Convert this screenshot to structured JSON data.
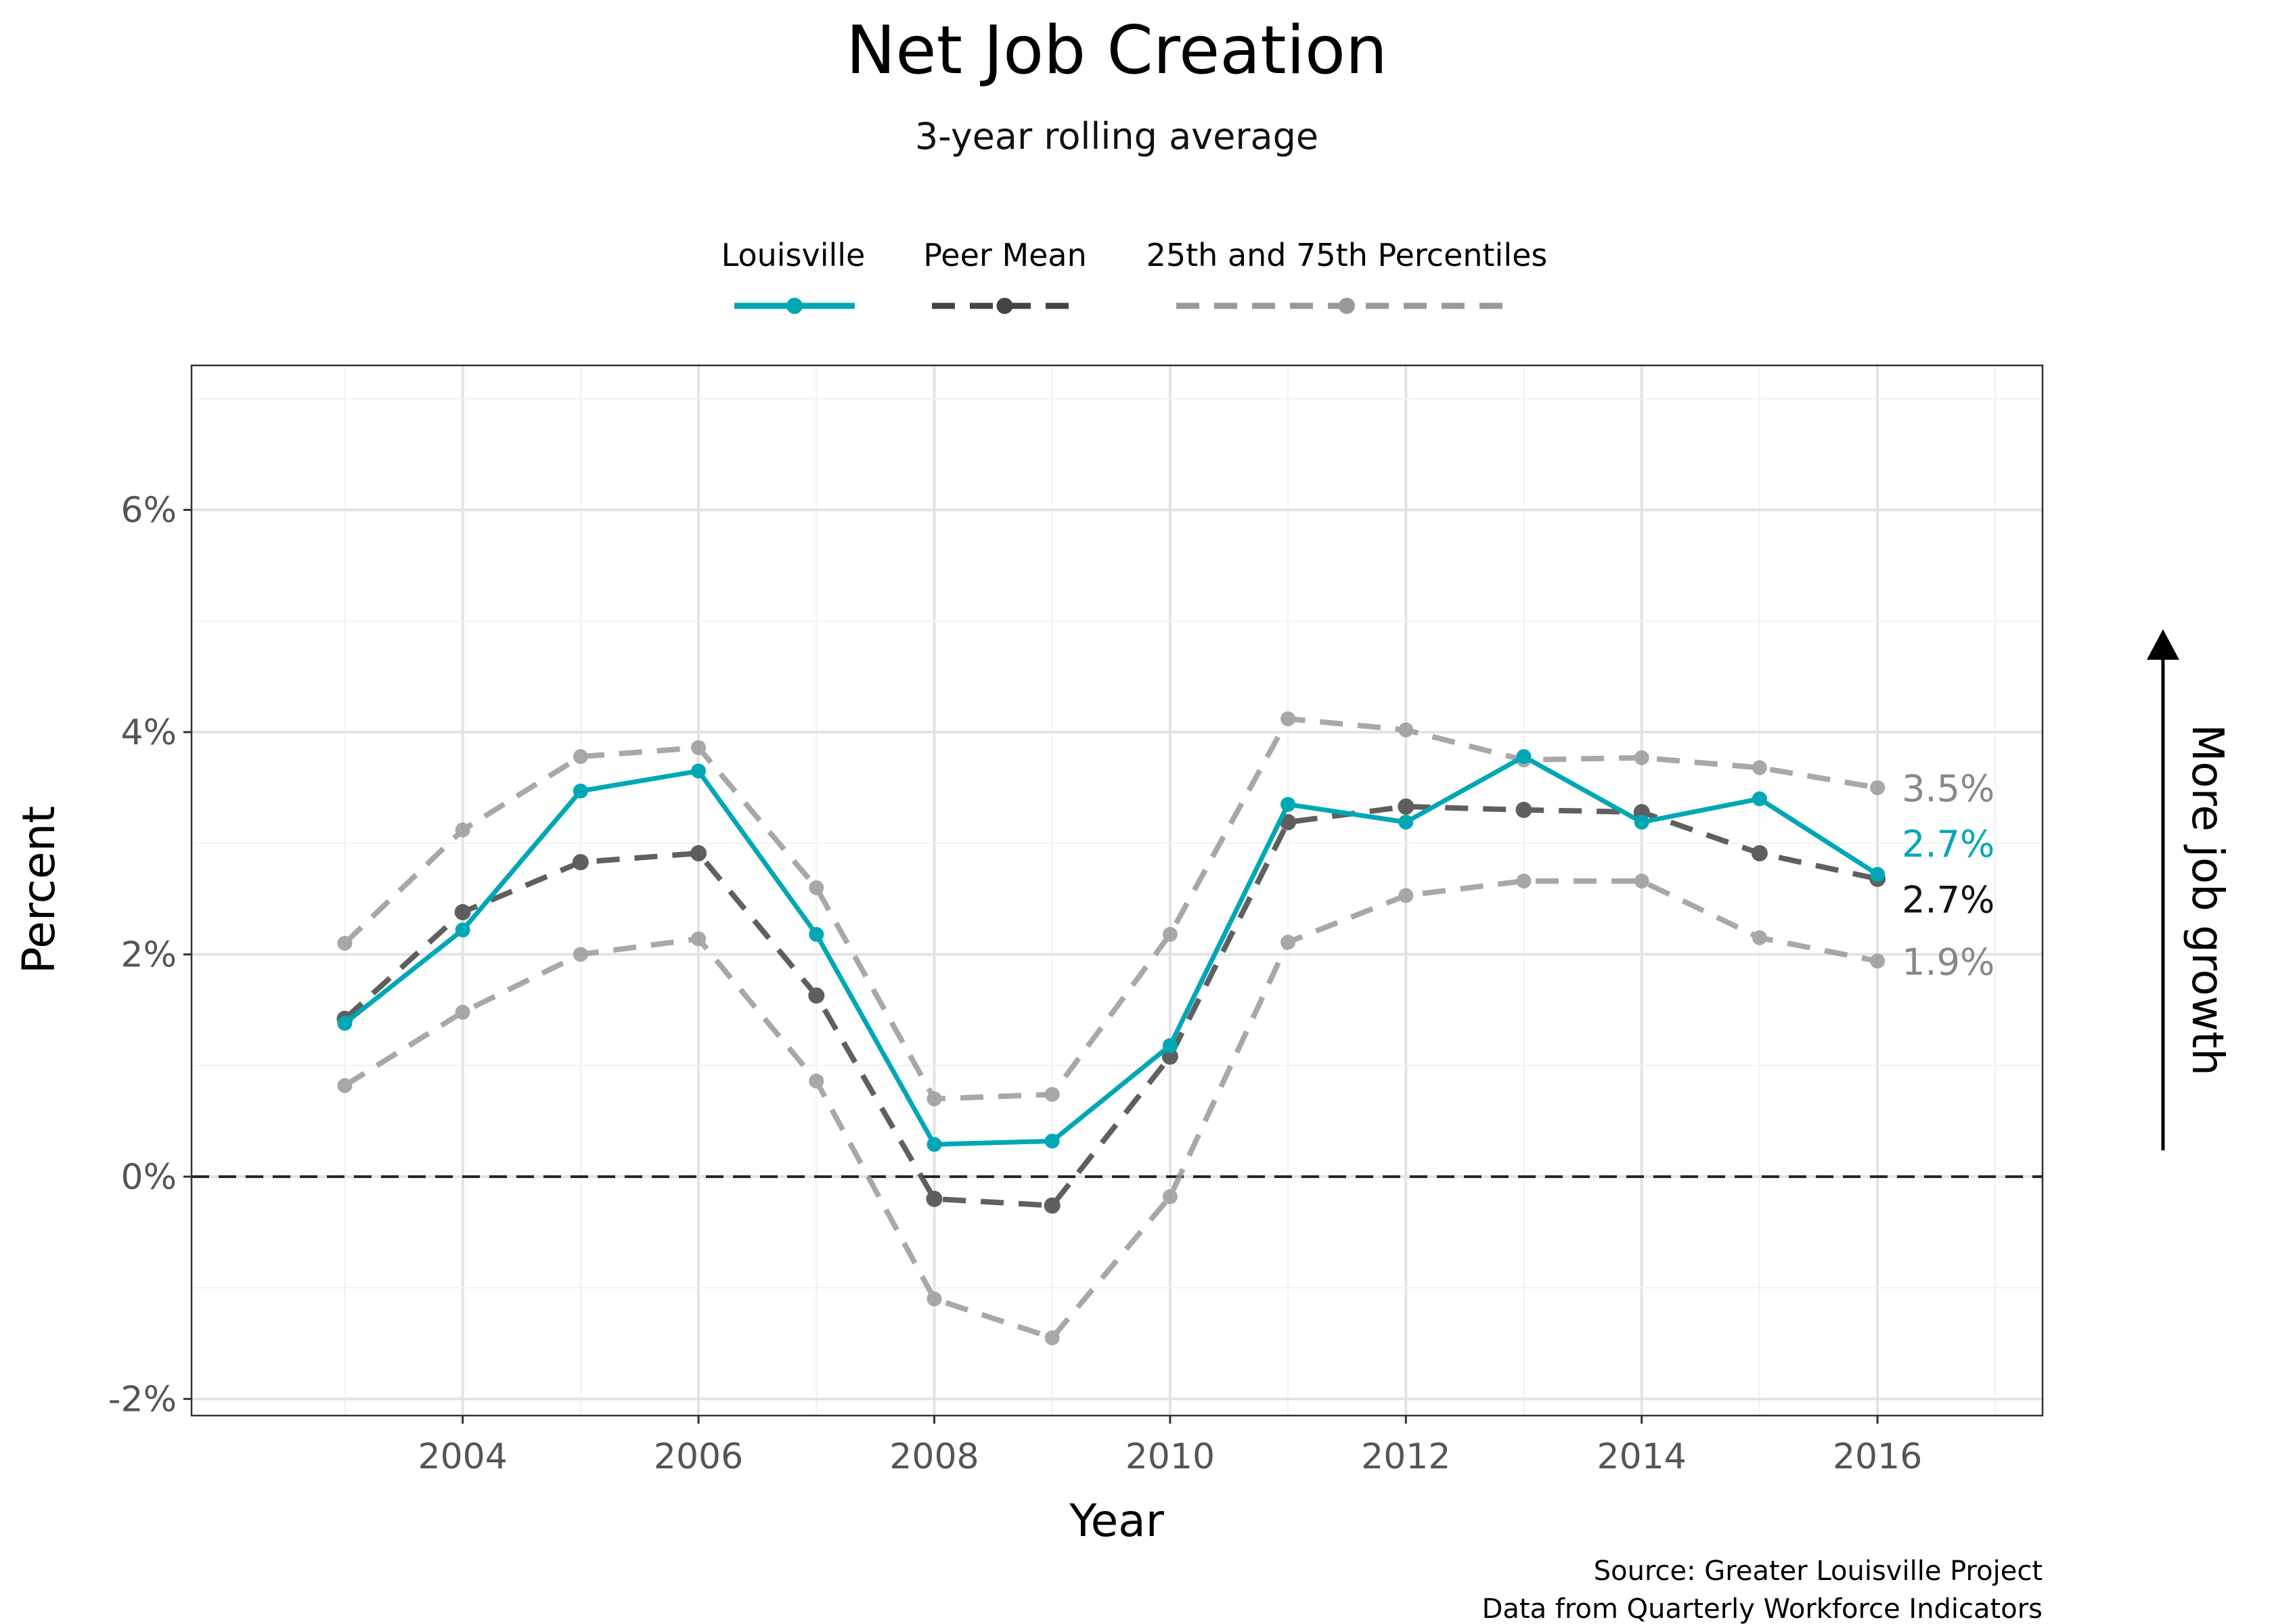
{
  "chart_data": {
    "type": "line",
    "title": "Net Job Creation",
    "subtitle": "3-year rolling average",
    "xlabel": "Year",
    "ylabel": "Percent",
    "x": [
      2003,
      2004,
      2005,
      2006,
      2007,
      2008,
      2009,
      2010,
      2011,
      2012,
      2013,
      2014,
      2015,
      2016
    ],
    "x_ticks": [
      2004,
      2006,
      2008,
      2010,
      2012,
      2014,
      2016
    ],
    "y_ticks": [
      -2,
      0,
      2,
      4,
      6
    ],
    "y_tick_labels": [
      "-2%",
      "0%",
      "2%",
      "4%",
      "6%"
    ],
    "xlim": [
      2001.7,
      2017.4
    ],
    "ylim": [
      -2.15,
      7.3
    ],
    "grid": true,
    "legend_position": "top",
    "reference_line": {
      "y": 0,
      "style": "dashed"
    },
    "legend_items": [
      {
        "label": "Louisville",
        "color": "#00A7B5",
        "style": "solid"
      },
      {
        "label": "Peer Mean",
        "color": "#444444",
        "style": "dashed"
      },
      {
        "label": "25th and 75th Percentiles",
        "color": "#999999",
        "style": "dashed"
      }
    ],
    "series": [
      {
        "name": "Louisville",
        "color": "#00A7B5",
        "values": [
          1.38,
          2.22,
          3.47,
          3.65,
          2.18,
          0.29,
          0.32,
          1.18,
          3.35,
          3.19,
          3.78,
          3.19,
          3.4,
          2.72
        ]
      },
      {
        "name": "Peer Mean",
        "color": "#444444",
        "values": [
          1.42,
          2.38,
          2.83,
          2.91,
          1.63,
          -0.2,
          -0.26,
          1.08,
          3.19,
          3.33,
          3.3,
          3.28,
          2.91,
          2.68
        ]
      },
      {
        "name": "75th Percentile",
        "color": "#999999",
        "values": [
          2.1,
          3.12,
          3.78,
          3.86,
          2.6,
          0.7,
          0.74,
          2.18,
          4.12,
          4.02,
          3.75,
          3.77,
          3.68,
          3.5
        ]
      },
      {
        "name": "25th Percentile",
        "color": "#999999",
        "values": [
          0.82,
          1.48,
          2.0,
          2.14,
          0.86,
          -1.1,
          -1.45,
          -0.18,
          2.11,
          2.53,
          2.66,
          2.66,
          2.15,
          1.94
        ]
      }
    ],
    "end_labels": [
      {
        "text": "3.5%",
        "color": "#888888",
        "y": 3.5
      },
      {
        "text": "2.7%",
        "color": "#00A7B5",
        "y": 3.0
      },
      {
        "text": "2.7%",
        "color": "#111111",
        "y": 2.5
      },
      {
        "text": "1.9%",
        "color": "#888888",
        "y": 1.94
      }
    ],
    "side_note": "More job growth",
    "caption": [
      "Source: Greater Louisville Project",
      "Data from Quarterly Workforce Indicators"
    ]
  }
}
